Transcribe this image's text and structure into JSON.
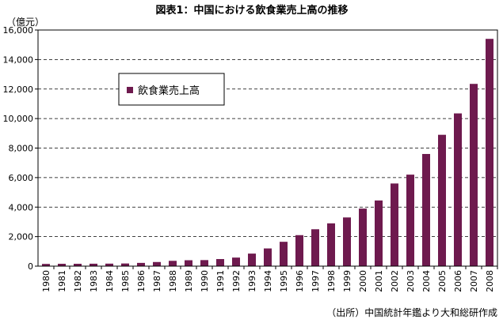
{
  "chart_data": {
    "type": "bar",
    "title": "図表1：中国における飲食業売上高の推移",
    "unit_label": "（億元）",
    "source_note": "（出所）中国統計年鑑より大和総研作成",
    "categories": [
      "1980",
      "1981",
      "1982",
      "1983",
      "1984",
      "1985",
      "1986",
      "1987",
      "1988",
      "1989",
      "1990",
      "1991",
      "1992",
      "1993",
      "1994",
      "1995",
      "1996",
      "1997",
      "1998",
      "1999",
      "2000",
      "2001",
      "2002",
      "2003",
      "2004",
      "2005",
      "2006",
      "2007",
      "2008"
    ],
    "series": [
      {
        "name": "飲食業売上高",
        "color": "#6E1A4E",
        "values": [
          150,
          160,
          160,
          165,
          170,
          180,
          220,
          280,
          360,
          400,
          410,
          480,
          580,
          850,
          1200,
          1650,
          2100,
          2500,
          2900,
          3300,
          3900,
          4450,
          5600,
          6200,
          7600,
          8900,
          10350,
          12350,
          15400
        ]
      }
    ],
    "ylim": [
      0,
      16000
    ],
    "yticks": [
      "0",
      "2,000",
      "4,000",
      "6,000",
      "8,000",
      "10,000",
      "12,000",
      "14,000",
      "16,000"
    ],
    "grid": "horizontal dashed",
    "legend_position": "upper-left"
  }
}
